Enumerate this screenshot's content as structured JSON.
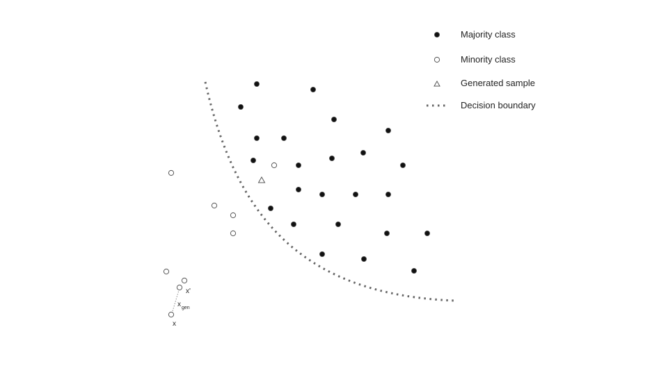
{
  "legend": {
    "majority_label": "Majority class",
    "minority_label": "Minority class",
    "generated_label": "Generated sample",
    "boundary_label": "Decision boundary"
  },
  "labels": {
    "x": "x",
    "x_prime": "x'",
    "x_gen_main": "x",
    "x_gen_sub": "gen"
  },
  "colors": {
    "majority_fill": "#111111",
    "minority_stroke": "#555555",
    "boundary": "#666666",
    "link_line": "#888888"
  },
  "icons": {
    "majority": "filled-circle-icon",
    "minority": "hollow-circle-icon",
    "generated": "hollow-triangle-icon",
    "boundary": "dotted-line-icon"
  }
}
